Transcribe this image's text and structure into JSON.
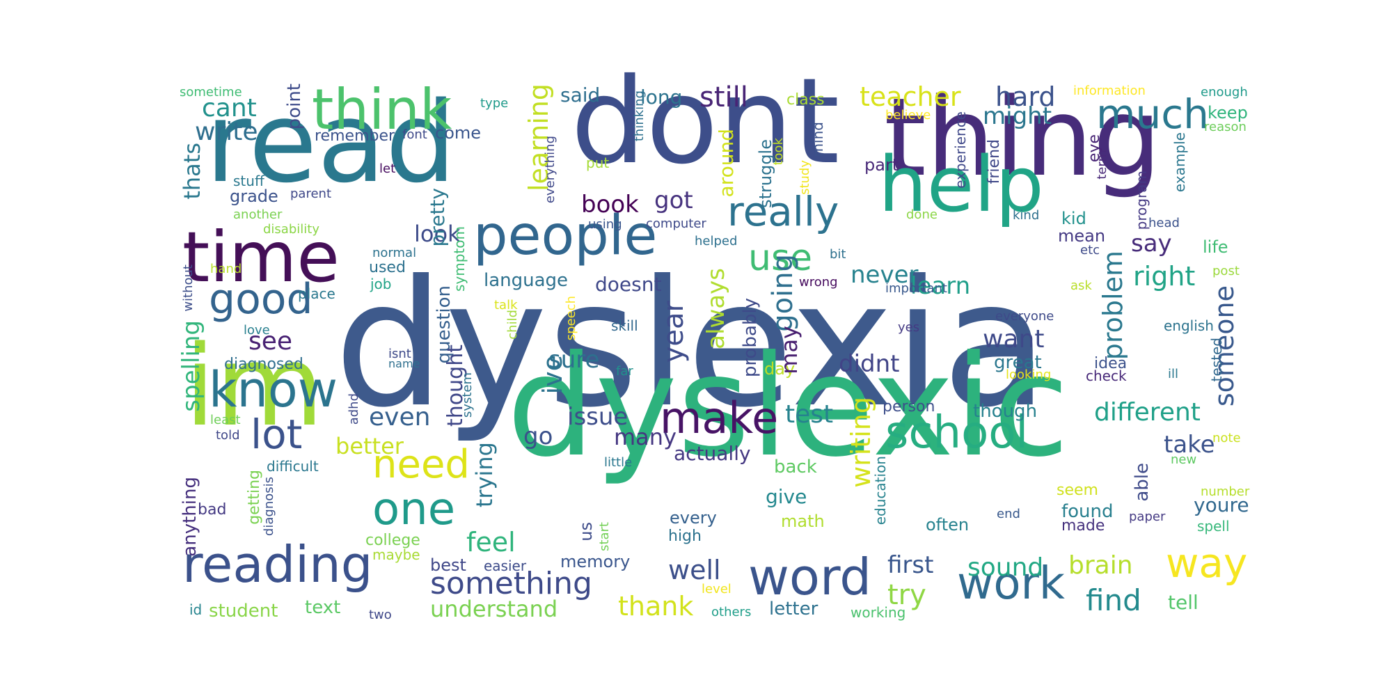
{
  "words": [
    {
      "id": "dyslexia",
      "text": "dyslexia",
      "color": "#3e5a8c"
    },
    {
      "id": "dyslexic",
      "text": "dyslexic",
      "color": "#2db27d"
    },
    {
      "id": "dont",
      "text": "dont",
      "color": "#3d4e8a"
    },
    {
      "id": "thing",
      "text": "thing",
      "color": "#472c7a"
    },
    {
      "id": "read",
      "text": "read",
      "color": "#2a788e"
    },
    {
      "id": "im",
      "text": "im",
      "color": "#a0da39"
    },
    {
      "id": "help",
      "text": "help",
      "color": "#20a486"
    },
    {
      "id": "time",
      "text": "time",
      "color": "#440f57"
    },
    {
      "id": "think",
      "text": "think",
      "color": "#4cc26c"
    },
    {
      "id": "people",
      "text": "people",
      "color": "#31668e"
    },
    {
      "id": "reading",
      "text": "reading",
      "color": "#3b518b"
    },
    {
      "id": "know",
      "text": "know",
      "color": "#2b748e"
    },
    {
      "id": "word",
      "text": "word",
      "color": "#3a548c"
    },
    {
      "id": "school",
      "text": "school",
      "color": "#26ad81"
    },
    {
      "id": "work",
      "text": "work",
      "color": "#306a8e"
    },
    {
      "id": "really",
      "text": "really",
      "color": "#2c728e"
    },
    {
      "id": "much",
      "text": "much",
      "color": "#2a788e"
    },
    {
      "id": "make",
      "text": "make",
      "color": "#471365"
    },
    {
      "id": "good",
      "text": "good",
      "color": "#33638d"
    },
    {
      "id": "one",
      "text": "one",
      "color": "#1f9a8a"
    },
    {
      "id": "need",
      "text": "need",
      "color": "#dde318"
    },
    {
      "id": "way",
      "text": "way",
      "color": "#f6e620"
    },
    {
      "id": "use",
      "text": "use",
      "color": "#3fbc73"
    },
    {
      "id": "lot",
      "text": "lot",
      "color": "#3b528b"
    },
    {
      "id": "something",
      "text": "something",
      "color": "#3e4a89"
    },
    {
      "id": "still",
      "text": "still",
      "color": "#482475"
    },
    {
      "id": "teacher",
      "text": "teacher",
      "color": "#d8e219"
    },
    {
      "id": "hard",
      "text": "hard",
      "color": "#3b528b"
    },
    {
      "id": "cant",
      "text": "cant",
      "color": "#21918c"
    },
    {
      "id": "write",
      "text": "write",
      "color": "#2e6e8e"
    },
    {
      "id": "book",
      "text": "book",
      "color": "#440154"
    },
    {
      "id": "got",
      "text": "got",
      "color": "#46327e"
    },
    {
      "id": "look",
      "text": "look",
      "color": "#3e4c8a"
    },
    {
      "id": "see",
      "text": "see",
      "color": "#482173"
    },
    {
      "id": "even",
      "text": "even",
      "color": "#355f8d"
    },
    {
      "id": "better",
      "text": "better",
      "color": "#c8e020"
    },
    {
      "id": "issue",
      "text": "issue",
      "color": "#3d4d8a"
    },
    {
      "id": "go",
      "text": "go",
      "color": "#3b518b"
    },
    {
      "id": "many",
      "text": "many",
      "color": "#453781"
    },
    {
      "id": "feel",
      "text": "feel",
      "color": "#2fb47c"
    },
    {
      "id": "well",
      "text": "well",
      "color": "#3c4f8a"
    },
    {
      "id": "understand",
      "text": "understand",
      "color": "#7ad151"
    },
    {
      "id": "thank",
      "text": "thank",
      "color": "#d2e21b"
    },
    {
      "id": "test",
      "text": "test",
      "color": "#26828e"
    },
    {
      "id": "different",
      "text": "different",
      "color": "#1fa088"
    },
    {
      "id": "take",
      "text": "take",
      "color": "#3b528b"
    },
    {
      "id": "sound",
      "text": "sound",
      "color": "#22a884"
    },
    {
      "id": "brain",
      "text": "brain",
      "color": "#b5de2b"
    },
    {
      "id": "find",
      "text": "find",
      "color": "#238a8d"
    },
    {
      "id": "first",
      "text": "first",
      "color": "#39568c"
    },
    {
      "id": "try",
      "text": "try",
      "color": "#8fd744"
    },
    {
      "id": "want",
      "text": "want",
      "color": "#3e4989"
    },
    {
      "id": "say",
      "text": "say",
      "color": "#472c7a"
    },
    {
      "id": "right",
      "text": "right",
      "color": "#20a386"
    },
    {
      "id": "learn",
      "text": "learn",
      "color": "#1f9e89"
    },
    {
      "id": "never",
      "text": "never",
      "color": "#26828e"
    },
    {
      "id": "might",
      "text": "might",
      "color": "#2a768e"
    },
    {
      "id": "didnt",
      "text": "didnt",
      "color": "#414487"
    },
    {
      "id": "sure",
      "text": "sure",
      "color": "#2d708e"
    },
    {
      "id": "said",
      "text": "said",
      "color": "#2e6e8e"
    },
    {
      "id": "long",
      "text": "long",
      "color": "#2c738e"
    },
    {
      "id": "language",
      "text": "language",
      "color": "#2d718e"
    },
    {
      "id": "doesnt",
      "text": "doesnt",
      "color": "#3f4889"
    },
    {
      "id": "actually",
      "text": "actually",
      "color": "#453882"
    },
    {
      "id": "back",
      "text": "back",
      "color": "#5ec962"
    },
    {
      "id": "give",
      "text": "give",
      "color": "#23888e"
    },
    {
      "id": "math",
      "text": "math",
      "color": "#b0dd2f"
    },
    {
      "id": "every",
      "text": "every",
      "color": "#34608d"
    },
    {
      "id": "high",
      "text": "high",
      "color": "#2c728e"
    },
    {
      "id": "memory",
      "text": "memory",
      "color": "#39558c"
    },
    {
      "id": "best",
      "text": "best",
      "color": "#3f4788"
    },
    {
      "id": "easier",
      "text": "easier",
      "color": "#3e4c8a"
    },
    {
      "id": "text",
      "text": "text",
      "color": "#5ac864"
    },
    {
      "id": "student",
      "text": "student",
      "color": "#89d548"
    },
    {
      "id": "college",
      "text": "college",
      "color": "#7ad151"
    },
    {
      "id": "maybe",
      "text": "maybe",
      "color": "#a8db34"
    },
    {
      "id": "two",
      "text": "two",
      "color": "#3f4889"
    },
    {
      "id": "id",
      "text": "id",
      "color": "#25848e"
    },
    {
      "id": "letter",
      "text": "letter",
      "color": "#2d718e"
    },
    {
      "id": "working",
      "text": "working",
      "color": "#4ac16d"
    },
    {
      "id": "others",
      "text": "others",
      "color": "#1f9e89"
    },
    {
      "id": "level",
      "text": "level",
      "color": "#f1e51d"
    },
    {
      "id": "tell",
      "text": "tell",
      "color": "#52c569"
    },
    {
      "id": "often",
      "text": "often",
      "color": "#26828e"
    },
    {
      "id": "end",
      "text": "end",
      "color": "#38588c"
    },
    {
      "id": "made",
      "text": "made",
      "color": "#46327e"
    },
    {
      "id": "found",
      "text": "found",
      "color": "#277f8e"
    },
    {
      "id": "seem",
      "text": "seem",
      "color": "#d0e11c"
    },
    {
      "id": "paper",
      "text": "paper",
      "color": "#443983"
    },
    {
      "id": "youre",
      "text": "youre",
      "color": "#31688e"
    },
    {
      "id": "spell",
      "text": "spell",
      "color": "#35b779"
    },
    {
      "id": "number",
      "text": "number",
      "color": "#b5de2b"
    },
    {
      "id": "new",
      "text": "new",
      "color": "#5ec962"
    },
    {
      "id": "note",
      "text": "note",
      "color": "#cae11f"
    },
    {
      "id": "though",
      "text": "though",
      "color": "#26818e"
    },
    {
      "id": "person",
      "text": "person",
      "color": "#3d4e8a"
    },
    {
      "id": "great",
      "text": "great",
      "color": "#2a778e"
    },
    {
      "id": "looking",
      "text": "looking",
      "color": "#e5e419"
    },
    {
      "id": "check",
      "text": "check",
      "color": "#482979"
    },
    {
      "id": "idea",
      "text": "idea",
      "color": "#3b518b"
    },
    {
      "id": "ill",
      "text": "ill",
      "color": "#2a788e"
    },
    {
      "id": "yes",
      "text": "yes",
      "color": "#443a83"
    },
    {
      "id": "everyone",
      "text": "everyone",
      "color": "#3e4a89"
    },
    {
      "id": "english",
      "text": "english",
      "color": "#2c738e"
    },
    {
      "id": "important",
      "text": "important",
      "color": "#38588c"
    },
    {
      "id": "ask",
      "text": "ask",
      "color": "#b8de29"
    },
    {
      "id": "post",
      "text": "post",
      "color": "#9bd93c"
    },
    {
      "id": "life",
      "text": "life",
      "color": "#3fbc73"
    },
    {
      "id": "mean",
      "text": "mean",
      "color": "#443983"
    },
    {
      "id": "kid",
      "text": "kid",
      "color": "#21918c"
    },
    {
      "id": "kind",
      "text": "kind",
      "color": "#2d708e"
    },
    {
      "id": "head",
      "text": "head",
      "color": "#3b528b"
    },
    {
      "id": "keep",
      "text": "keep",
      "color": "#2fb47c"
    },
    {
      "id": "reason",
      "text": "reason",
      "color": "#6ccd5a"
    },
    {
      "id": "enough",
      "text": "enough",
      "color": "#1f9a8a"
    },
    {
      "id": "information",
      "text": "information",
      "color": "#fde725"
    },
    {
      "id": "believe",
      "text": "believe",
      "color": "#fde725"
    },
    {
      "id": "class",
      "text": "class",
      "color": "#aadc32"
    },
    {
      "id": "part",
      "text": "part",
      "color": "#482878"
    },
    {
      "id": "done",
      "text": "done",
      "color": "#8bd646"
    },
    {
      "id": "bit",
      "text": "bit",
      "color": "#2d708e"
    },
    {
      "id": "etc",
      "text": "etc",
      "color": "#3e4a89"
    },
    {
      "id": "helped",
      "text": "helped",
      "color": "#2d708e"
    },
    {
      "id": "computer",
      "text": "computer",
      "color": "#3e4989"
    },
    {
      "id": "using",
      "text": "using",
      "color": "#39558c"
    },
    {
      "id": "wrong",
      "text": "wrong",
      "color": "#460b5e"
    },
    {
      "id": "day",
      "text": "day",
      "color": "#c0df25"
    },
    {
      "id": "skill",
      "text": "skill",
      "color": "#31688e"
    },
    {
      "id": "far",
      "text": "far",
      "color": "#21918c"
    },
    {
      "id": "little",
      "text": "little",
      "color": "#2a778e"
    },
    {
      "id": "put",
      "text": "put",
      "color": "#a5db36"
    },
    {
      "id": "type",
      "text": "type",
      "color": "#1f9a8a"
    },
    {
      "id": "come",
      "text": "come",
      "color": "#39558c"
    },
    {
      "id": "font",
      "text": "font",
      "color": "#3e4989"
    },
    {
      "id": "remember",
      "text": "remember",
      "color": "#3b528b"
    },
    {
      "id": "stuff",
      "text": "stuff",
      "color": "#2a788e"
    },
    {
      "id": "grade",
      "text": "grade",
      "color": "#3b528b"
    },
    {
      "id": "parent",
      "text": "parent",
      "color": "#3f4889"
    },
    {
      "id": "let",
      "text": "let",
      "color": "#460b5e"
    },
    {
      "id": "another",
      "text": "another",
      "color": "#7ad151"
    },
    {
      "id": "disability",
      "text": "disability",
      "color": "#8bd646"
    },
    {
      "id": "hand",
      "text": "hand",
      "color": "#b8de29"
    },
    {
      "id": "place",
      "text": "place",
      "color": "#2a788e"
    },
    {
      "id": "normal",
      "text": "normal",
      "color": "#2c728e"
    },
    {
      "id": "used",
      "text": "used",
      "color": "#2c718e"
    },
    {
      "id": "job",
      "text": "job",
      "color": "#20a386"
    },
    {
      "id": "love",
      "text": "love",
      "color": "#277f8e"
    },
    {
      "id": "diagnosed",
      "text": "diagnosed",
      "color": "#2e6e8e"
    },
    {
      "id": "isnt",
      "text": "isnt",
      "color": "#3e4a89"
    },
    {
      "id": "name",
      "text": "name",
      "color": "#2e6f8e"
    },
    {
      "id": "least",
      "text": "least",
      "color": "#6ece58"
    },
    {
      "id": "told",
      "text": "told",
      "color": "#3f4788"
    },
    {
      "id": "difficult",
      "text": "difficult",
      "color": "#2a778e"
    },
    {
      "id": "bad",
      "text": "bad",
      "color": "#443983"
    },
    {
      "id": "sometime",
      "text": "sometime",
      "color": "#3fbc73"
    },
    {
      "id": "talk",
      "text": "talk",
      "color": "#dae319"
    },
    {
      "id": "point",
      "text": "point",
      "color": "#3e4c8a",
      "v": true
    },
    {
      "id": "thats",
      "text": "thats",
      "color": "#2a788e",
      "v": true
    },
    {
      "id": "spelling",
      "text": "spelling",
      "color": "#31b57b",
      "v": true
    },
    {
      "id": "without",
      "text": "without",
      "color": "#3d4e8a",
      "v": true
    },
    {
      "id": "anything",
      "text": "anything",
      "color": "#46307e",
      "v": true
    },
    {
      "id": "getting",
      "text": "getting",
      "color": "#7ad151",
      "v": true
    },
    {
      "id": "diagnosis",
      "text": "diagnosis",
      "color": "#3b518b",
      "v": true
    },
    {
      "id": "adhd",
      "text": "adhd",
      "color": "#3e4a89",
      "v": true
    },
    {
      "id": "pretty",
      "text": "pretty",
      "color": "#2a788e",
      "v": true
    },
    {
      "id": "symptom",
      "text": "symptom",
      "color": "#3fbc73",
      "v": true
    },
    {
      "id": "question",
      "text": "question",
      "color": "#355f8d",
      "v": true
    },
    {
      "id": "thought",
      "text": "thought",
      "color": "#3f4788",
      "v": true
    },
    {
      "id": "system",
      "text": "system",
      "color": "#2c728e",
      "v": true
    },
    {
      "id": "trying",
      "text": "trying",
      "color": "#2a768e",
      "v": true
    },
    {
      "id": "learning",
      "text": "learning",
      "color": "#c2df23",
      "v": true
    },
    {
      "id": "everything",
      "text": "everything",
      "color": "#3f4889",
      "v": true
    },
    {
      "id": "speech",
      "text": "speech",
      "color": "#fde725",
      "v": true
    },
    {
      "id": "child",
      "text": "child",
      "color": "#a2da37",
      "v": true
    },
    {
      "id": "ive",
      "text": "ive",
      "color": "#2c728e",
      "v": true
    },
    {
      "id": "us",
      "text": "us",
      "color": "#3e4c8a",
      "v": true
    },
    {
      "id": "start",
      "text": "start",
      "color": "#73d056",
      "v": true
    },
    {
      "id": "thinking",
      "text": "thinking",
      "color": "#2d708e",
      "v": true
    },
    {
      "id": "around",
      "text": "around",
      "color": "#d2e21b",
      "v": true
    },
    {
      "id": "always",
      "text": "always",
      "color": "#b0dd2f",
      "v": true
    },
    {
      "id": "year",
      "text": "year",
      "color": "#3e4c8a",
      "v": true
    },
    {
      "id": "took",
      "text": "took",
      "color": "#c0df25",
      "v": true
    },
    {
      "id": "struggle",
      "text": "struggle",
      "color": "#2c728e",
      "v": true
    },
    {
      "id": "probably",
      "text": "probably",
      "color": "#3e4a89",
      "v": true
    },
    {
      "id": "going",
      "text": "going",
      "color": "#2e6f8e",
      "v": true
    },
    {
      "id": "mind",
      "text": "mind",
      "color": "#3b528b",
      "v": true
    },
    {
      "id": "study",
      "text": "study",
      "color": "#f1e51d",
      "v": true
    },
    {
      "id": "writing",
      "text": "writing",
      "color": "#d5e21a",
      "v": true
    },
    {
      "id": "education",
      "text": "education",
      "color": "#26828e",
      "v": true
    },
    {
      "id": "experience",
      "text": "experience",
      "color": "#3f4889",
      "v": true
    },
    {
      "id": "friend",
      "text": "friend",
      "color": "#3f4788",
      "v": true
    },
    {
      "id": "problem",
      "text": "problem",
      "color": "#2a788e",
      "v": true
    },
    {
      "id": "eye",
      "text": "eye",
      "color": "#482475",
      "v": true
    },
    {
      "id": "term",
      "text": "term",
      "color": "#482878",
      "v": true
    },
    {
      "id": "program",
      "text": "program",
      "color": "#443983",
      "v": true
    },
    {
      "id": "example",
      "text": "example",
      "color": "#2a768e",
      "v": true
    },
    {
      "id": "someone",
      "text": "someone",
      "color": "#38588c",
      "v": true
    },
    {
      "id": "able",
      "text": "able",
      "color": "#3e4a89",
      "v": true
    },
    {
      "id": "tested",
      "text": "tested",
      "color": "#31688e",
      "v": true
    },
    {
      "id": "may",
      "text": "may",
      "color": "#481f70",
      "v": true
    }
  ]
}
